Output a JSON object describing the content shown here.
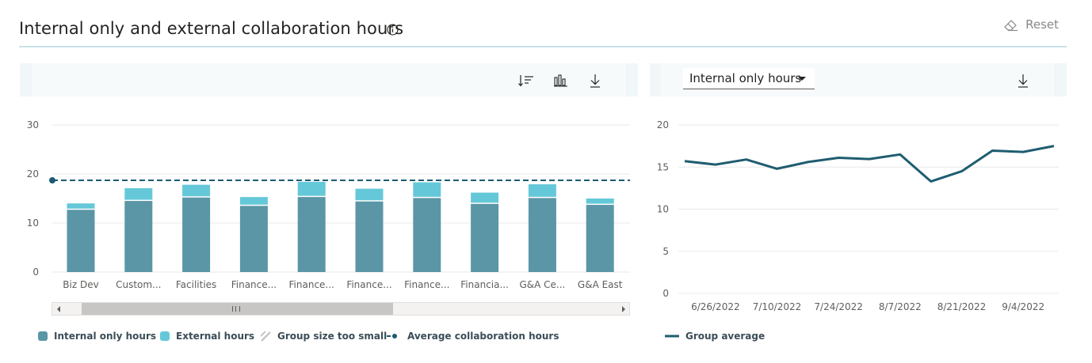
{
  "header": {
    "title": "Internal only and external collaboration hours",
    "reset_label": "Reset"
  },
  "dropdown": {
    "selected": "Internal only hours"
  },
  "legend_left": {
    "internal": "Internal only hours",
    "external": "External hours",
    "small": "Group size too small",
    "average": "Average collaboration hours"
  },
  "legend_right": {
    "group_average": "Group average"
  },
  "colors": {
    "internal": "#5b96a6",
    "external": "#65c8d8",
    "average_line": "#1b5a72",
    "line": "#1f5d70",
    "grid": "#e8e8e8",
    "axis_text": "#605e5c"
  },
  "chart_data": [
    {
      "type": "bar",
      "stacked": true,
      "categories": [
        "Biz Dev",
        "Custom...",
        "Facilities",
        "Finance...",
        "Finance...",
        "Finance...",
        "Finance...",
        "Financia...",
        "G&A Ce...",
        "G&A East"
      ],
      "series": [
        {
          "name": "Internal only hours",
          "values": [
            12.7,
            14.5,
            15.2,
            13.5,
            15.3,
            14.4,
            15.1,
            13.9,
            15.1,
            13.7
          ]
        },
        {
          "name": "External hours",
          "values": [
            1.3,
            2.6,
            2.6,
            1.8,
            3.1,
            2.6,
            3.2,
            2.3,
            2.8,
            1.3
          ]
        }
      ],
      "average_line": {
        "name": "Average collaboration hours",
        "value": 18.7
      },
      "ylim": [
        0,
        30
      ],
      "yticks": [
        "0",
        "10",
        "20",
        "30"
      ]
    },
    {
      "type": "line",
      "series": [
        {
          "name": "Group average",
          "values": [
            15.7,
            15.3,
            15.9,
            14.8,
            15.6,
            16.1,
            15.95,
            16.5,
            13.3,
            14.5,
            16.95,
            16.8,
            17.5
          ]
        }
      ],
      "xticks": [
        "6/26/2022",
        "7/10/2022",
        "7/24/2022",
        "8/7/2022",
        "8/21/2022",
        "9/4/2022"
      ],
      "ylim": [
        0,
        20
      ],
      "yticks": [
        "0",
        "5",
        "10",
        "15",
        "20"
      ]
    }
  ]
}
